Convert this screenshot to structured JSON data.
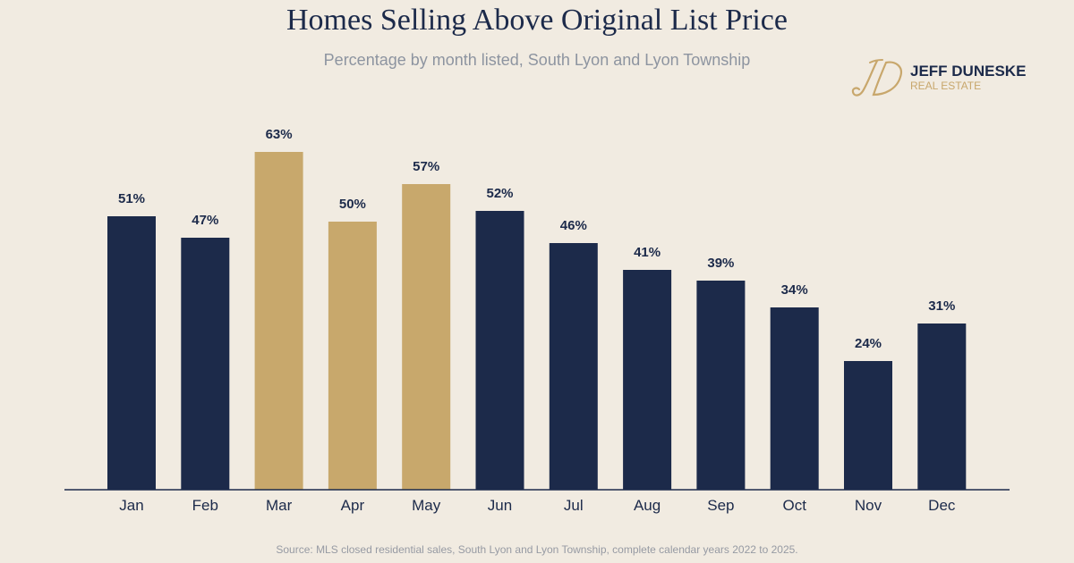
{
  "chart_data": {
    "type": "bar",
    "title": "Homes Selling Above Original List Price",
    "subtitle": "Percentage by month listed, South Lyon and Lyon Township",
    "categories": [
      "Jan",
      "Feb",
      "Mar",
      "Apr",
      "May",
      "Jun",
      "Jul",
      "Aug",
      "Sep",
      "Oct",
      "Nov",
      "Dec"
    ],
    "values": [
      51,
      47,
      63,
      50,
      57,
      52,
      46,
      41,
      39,
      34,
      24,
      31
    ],
    "value_labels": [
      "51%",
      "47%",
      "63%",
      "50%",
      "57%",
      "52%",
      "46%",
      "41%",
      "39%",
      "34%",
      "24%",
      "31%"
    ],
    "highlighted": [
      "Mar",
      "Apr",
      "May"
    ],
    "unit": "%",
    "xlabel": "",
    "ylabel": "",
    "ylim": [
      0,
      63
    ],
    "grid": false,
    "legend": "none",
    "colors": {
      "bar": "#1c2a4a",
      "highlight": "#c8a86c",
      "axis": "#1c2a4a",
      "background": "#f1ebe1"
    }
  },
  "logo": {
    "monogram": "JD",
    "name": "JEFF DUNESKE",
    "tagline": "REAL ESTATE"
  },
  "source": "Source: MLS closed residential sales, South Lyon and Lyon Township, complete calendar years 2022 to 2025."
}
